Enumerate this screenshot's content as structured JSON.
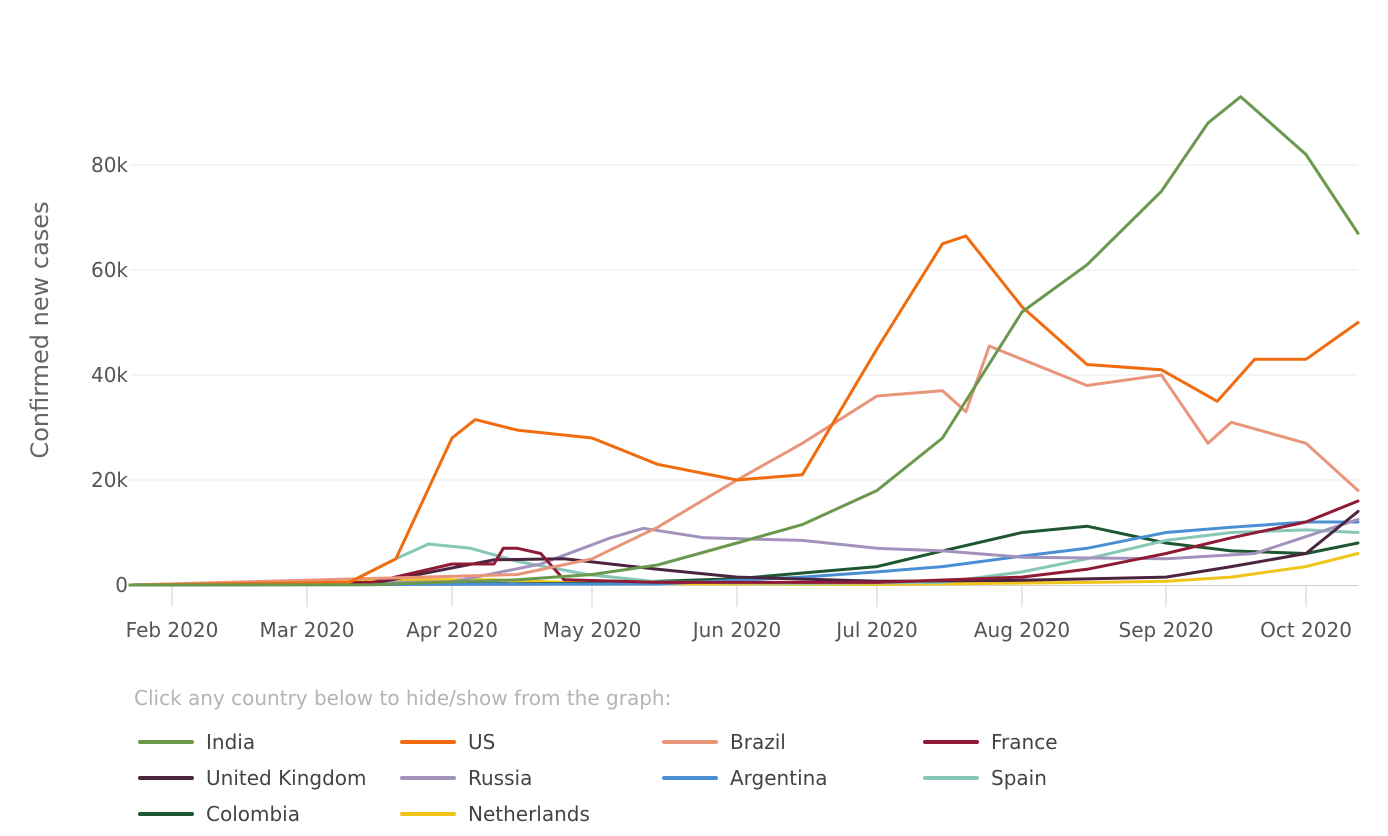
{
  "instruction": "Click any country below to hide/show from the graph:",
  "chart_data": {
    "type": "line",
    "title": "",
    "xlabel": "",
    "ylabel": "Confirmed new cases",
    "x_ticks": [
      "Feb 2020",
      "Mar 2020",
      "Apr 2020",
      "May 2020",
      "Jun 2020",
      "Jul 2020",
      "Aug 2020",
      "Sep 2020",
      "Oct 2020"
    ],
    "x_range": [
      "2020-01-22",
      "2020-10-12"
    ],
    "y_ticks": [
      "0",
      "20k",
      "40k",
      "60k",
      "80k"
    ],
    "ylim": [
      0,
      95000
    ],
    "grid": true,
    "legend_position": "bottom",
    "series": [
      {
        "name": "India",
        "color": "#6a994e",
        "points": [
          [
            "2020-01-22",
            0
          ],
          [
            "2020-03-15",
            50
          ],
          [
            "2020-04-01",
            600
          ],
          [
            "2020-04-15",
            1000
          ],
          [
            "2020-05-01",
            2000
          ],
          [
            "2020-05-15",
            3800
          ],
          [
            "2020-06-01",
            8000
          ],
          [
            "2020-06-15",
            11500
          ],
          [
            "2020-07-01",
            18000
          ],
          [
            "2020-07-15",
            28000
          ],
          [
            "2020-08-01",
            52000
          ],
          [
            "2020-08-15",
            61000
          ],
          [
            "2020-08-31",
            75000
          ],
          [
            "2020-09-10",
            88000
          ],
          [
            "2020-09-17",
            93000
          ],
          [
            "2020-10-01",
            82000
          ],
          [
            "2020-10-12",
            67000
          ]
        ]
      },
      {
        "name": "US",
        "color": "#f06c0e",
        "points": [
          [
            "2020-01-22",
            0
          ],
          [
            "2020-03-10",
            500
          ],
          [
            "2020-03-20",
            5000
          ],
          [
            "2020-04-01",
            28000
          ],
          [
            "2020-04-06",
            31500
          ],
          [
            "2020-04-15",
            29500
          ],
          [
            "2020-05-01",
            28000
          ],
          [
            "2020-05-15",
            23000
          ],
          [
            "2020-06-01",
            20000
          ],
          [
            "2020-06-15",
            21000
          ],
          [
            "2020-07-01",
            45000
          ],
          [
            "2020-07-15",
            65000
          ],
          [
            "2020-07-20",
            66500
          ],
          [
            "2020-08-01",
            53000
          ],
          [
            "2020-08-15",
            42000
          ],
          [
            "2020-08-31",
            41000
          ],
          [
            "2020-09-12",
            35000
          ],
          [
            "2020-09-20",
            43000
          ],
          [
            "2020-10-01",
            43000
          ],
          [
            "2020-10-12",
            50000
          ]
        ]
      },
      {
        "name": "Brazil",
        "color": "#e9957a",
        "points": [
          [
            "2020-01-22",
            0
          ],
          [
            "2020-04-15",
            2000
          ],
          [
            "2020-05-01",
            5000
          ],
          [
            "2020-05-15",
            11000
          ],
          [
            "2020-06-01",
            20000
          ],
          [
            "2020-06-15",
            27000
          ],
          [
            "2020-07-01",
            36000
          ],
          [
            "2020-07-15",
            37000
          ],
          [
            "2020-07-20",
            33000
          ],
          [
            "2020-07-25",
            45500
          ],
          [
            "2020-08-01",
            43000
          ],
          [
            "2020-08-15",
            38000
          ],
          [
            "2020-08-31",
            40000
          ],
          [
            "2020-09-10",
            27000
          ],
          [
            "2020-09-15",
            31000
          ],
          [
            "2020-10-01",
            27000
          ],
          [
            "2020-10-12",
            18000
          ]
        ]
      },
      {
        "name": "France",
        "color": "#8f1a35",
        "points": [
          [
            "2020-01-22",
            0
          ],
          [
            "2020-03-15",
            500
          ],
          [
            "2020-04-01",
            4000
          ],
          [
            "2020-04-10",
            4000
          ],
          [
            "2020-04-12",
            7000
          ],
          [
            "2020-04-15",
            7000
          ],
          [
            "2020-04-20",
            6000
          ],
          [
            "2020-04-25",
            1000
          ],
          [
            "2020-05-15",
            500
          ],
          [
            "2020-07-01",
            500
          ],
          [
            "2020-08-01",
            1500
          ],
          [
            "2020-08-15",
            3000
          ],
          [
            "2020-09-01",
            6000
          ],
          [
            "2020-09-15",
            9000
          ],
          [
            "2020-10-01",
            12000
          ],
          [
            "2020-10-12",
            16000
          ]
        ]
      },
      {
        "name": "United Kingdom",
        "color": "#4b2440",
        "points": [
          [
            "2020-01-22",
            0
          ],
          [
            "2020-03-15",
            300
          ],
          [
            "2020-04-10",
            4800
          ],
          [
            "2020-04-25",
            5000
          ],
          [
            "2020-05-15",
            3000
          ],
          [
            "2020-06-01",
            1500
          ],
          [
            "2020-07-01",
            700
          ],
          [
            "2020-08-01",
            900
          ],
          [
            "2020-09-01",
            1500
          ],
          [
            "2020-09-15",
            3500
          ],
          [
            "2020-10-01",
            6000
          ],
          [
            "2020-10-12",
            14000
          ]
        ]
      },
      {
        "name": "Russia",
        "color": "#a393bc",
        "points": [
          [
            "2020-01-22",
            0
          ],
          [
            "2020-04-01",
            600
          ],
          [
            "2020-04-20",
            4000
          ],
          [
            "2020-05-05",
            9000
          ],
          [
            "2020-05-12",
            10800
          ],
          [
            "2020-05-25",
            9000
          ],
          [
            "2020-06-15",
            8500
          ],
          [
            "2020-07-01",
            7000
          ],
          [
            "2020-07-15",
            6500
          ],
          [
            "2020-08-01",
            5300
          ],
          [
            "2020-09-01",
            5000
          ],
          [
            "2020-09-20",
            6000
          ],
          [
            "2020-10-12",
            12500
          ]
        ]
      },
      {
        "name": "Argentina",
        "color": "#4a8fd4",
        "points": [
          [
            "2020-01-22",
            0
          ],
          [
            "2020-05-15",
            200
          ],
          [
            "2020-06-15",
            1500
          ],
          [
            "2020-07-01",
            2500
          ],
          [
            "2020-07-15",
            3500
          ],
          [
            "2020-08-01",
            5500
          ],
          [
            "2020-08-15",
            7000
          ],
          [
            "2020-09-01",
            10000
          ],
          [
            "2020-09-15",
            11000
          ],
          [
            "2020-10-01",
            12000
          ],
          [
            "2020-10-12",
            12000
          ]
        ]
      },
      {
        "name": "Spain",
        "color": "#86c7b7",
        "points": [
          [
            "2020-01-22",
            0
          ],
          [
            "2020-03-10",
            500
          ],
          [
            "2020-03-20",
            5000
          ],
          [
            "2020-03-27",
            7800
          ],
          [
            "2020-04-05",
            7000
          ],
          [
            "2020-04-15",
            4500
          ],
          [
            "2020-04-30",
            2000
          ],
          [
            "2020-05-15",
            600
          ],
          [
            "2020-06-15",
            300
          ],
          [
            "2020-07-15",
            500
          ],
          [
            "2020-08-01",
            2500
          ],
          [
            "2020-08-15",
            5000
          ],
          [
            "2020-09-01",
            8500
          ],
          [
            "2020-09-15",
            10000
          ],
          [
            "2020-10-01",
            10500
          ],
          [
            "2020-10-12",
            10000
          ]
        ]
      },
      {
        "name": "Colombia",
        "color": "#1e5631",
        "points": [
          [
            "2020-01-22",
            0
          ],
          [
            "2020-05-01",
            300
          ],
          [
            "2020-06-01",
            1200
          ],
          [
            "2020-07-01",
            3500
          ],
          [
            "2020-07-15",
            6500
          ],
          [
            "2020-08-01",
            10000
          ],
          [
            "2020-08-15",
            11200
          ],
          [
            "2020-09-01",
            8000
          ],
          [
            "2020-09-15",
            6500
          ],
          [
            "2020-10-01",
            6000
          ],
          [
            "2020-10-12",
            8000
          ]
        ]
      },
      {
        "name": "Netherlands",
        "color": "#f0c419",
        "points": [
          [
            "2020-01-22",
            0
          ],
          [
            "2020-03-25",
            1000
          ],
          [
            "2020-04-10",
            1000
          ],
          [
            "2020-05-01",
            300
          ],
          [
            "2020-07-01",
            100
          ],
          [
            "2020-08-15",
            500
          ],
          [
            "2020-09-01",
            700
          ],
          [
            "2020-09-15",
            1500
          ],
          [
            "2020-10-01",
            3500
          ],
          [
            "2020-10-12",
            6000
          ]
        ]
      }
    ]
  }
}
